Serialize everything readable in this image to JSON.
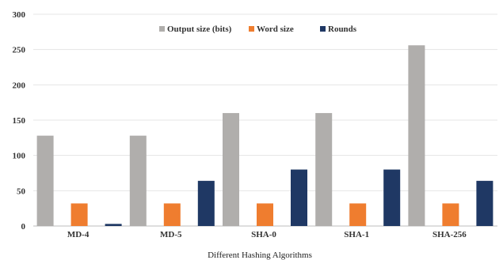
{
  "chart_data": {
    "type": "bar",
    "title": "",
    "xlabel": "Different Hashing Algorithms",
    "ylabel": "",
    "categories": [
      "MD-4",
      "MD-5",
      "SHA-0",
      "SHA-1",
      "SHA-256"
    ],
    "series": [
      {
        "name": "Output size (bits)",
        "color": "#b0aeac",
        "values": [
          128,
          128,
          160,
          160,
          256
        ]
      },
      {
        "name": "Word size",
        "color": "#ef7d2f",
        "values": [
          32,
          32,
          32,
          32,
          32
        ]
      },
      {
        "name": "Rounds",
        "color": "#1f3864",
        "values": [
          3,
          64,
          80,
          80,
          64
        ]
      }
    ],
    "ylim": [
      0,
      300
    ],
    "yticks": [
      0,
      50,
      100,
      150,
      200,
      250,
      300
    ],
    "grid": true,
    "legend_position": "top-center"
  }
}
